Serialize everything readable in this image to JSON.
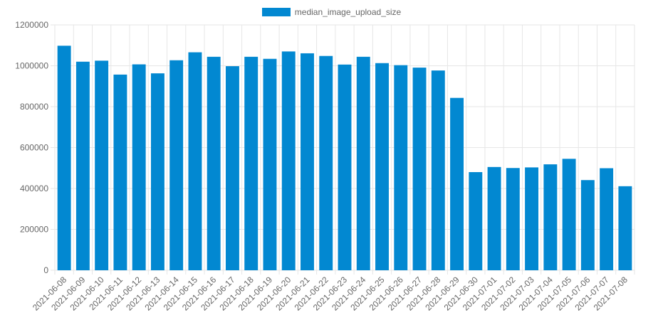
{
  "colors": {
    "bar": "#0288d1",
    "grid": "#e6e6e6",
    "tick_text": "#666666"
  },
  "legend": {
    "label": "median_image_upload_size"
  },
  "chart_data": {
    "type": "bar",
    "title": "",
    "xlabel": "",
    "ylabel": "",
    "ylim": [
      0,
      1200000
    ],
    "y_ticks": [
      0,
      200000,
      400000,
      600000,
      800000,
      1000000,
      1200000
    ],
    "legend_position": "top-center",
    "grid": true,
    "categories": [
      "2021-06-08",
      "2021-06-09",
      "2021-06-10",
      "2021-06-11",
      "2021-06-12",
      "2021-06-13",
      "2021-06-14",
      "2021-06-15",
      "2021-06-16",
      "2021-06-17",
      "2021-06-18",
      "2021-06-19",
      "2021-06-20",
      "2021-06-21",
      "2021-06-22",
      "2021-06-23",
      "2021-06-24",
      "2021-06-25",
      "2021-06-26",
      "2021-06-27",
      "2021-06-28",
      "2021-06-29",
      "2021-06-30",
      "2021-07-01",
      "2021-07-02",
      "2021-07-03",
      "2021-07-04",
      "2021-07-05",
      "2021-07-06",
      "2021-07-07",
      "2021-07-08"
    ],
    "series": [
      {
        "name": "median_image_upload_size",
        "values": [
          1098000,
          1020000,
          1025000,
          957000,
          1007000,
          963000,
          1027000,
          1066000,
          1044000,
          998000,
          1044000,
          1034000,
          1070000,
          1061000,
          1048000,
          1006000,
          1044000,
          1013000,
          1003000,
          991000,
          977000,
          843000,
          480000,
          505000,
          500000,
          503000,
          518000,
          545000,
          441000,
          499000,
          411000
        ]
      }
    ]
  }
}
